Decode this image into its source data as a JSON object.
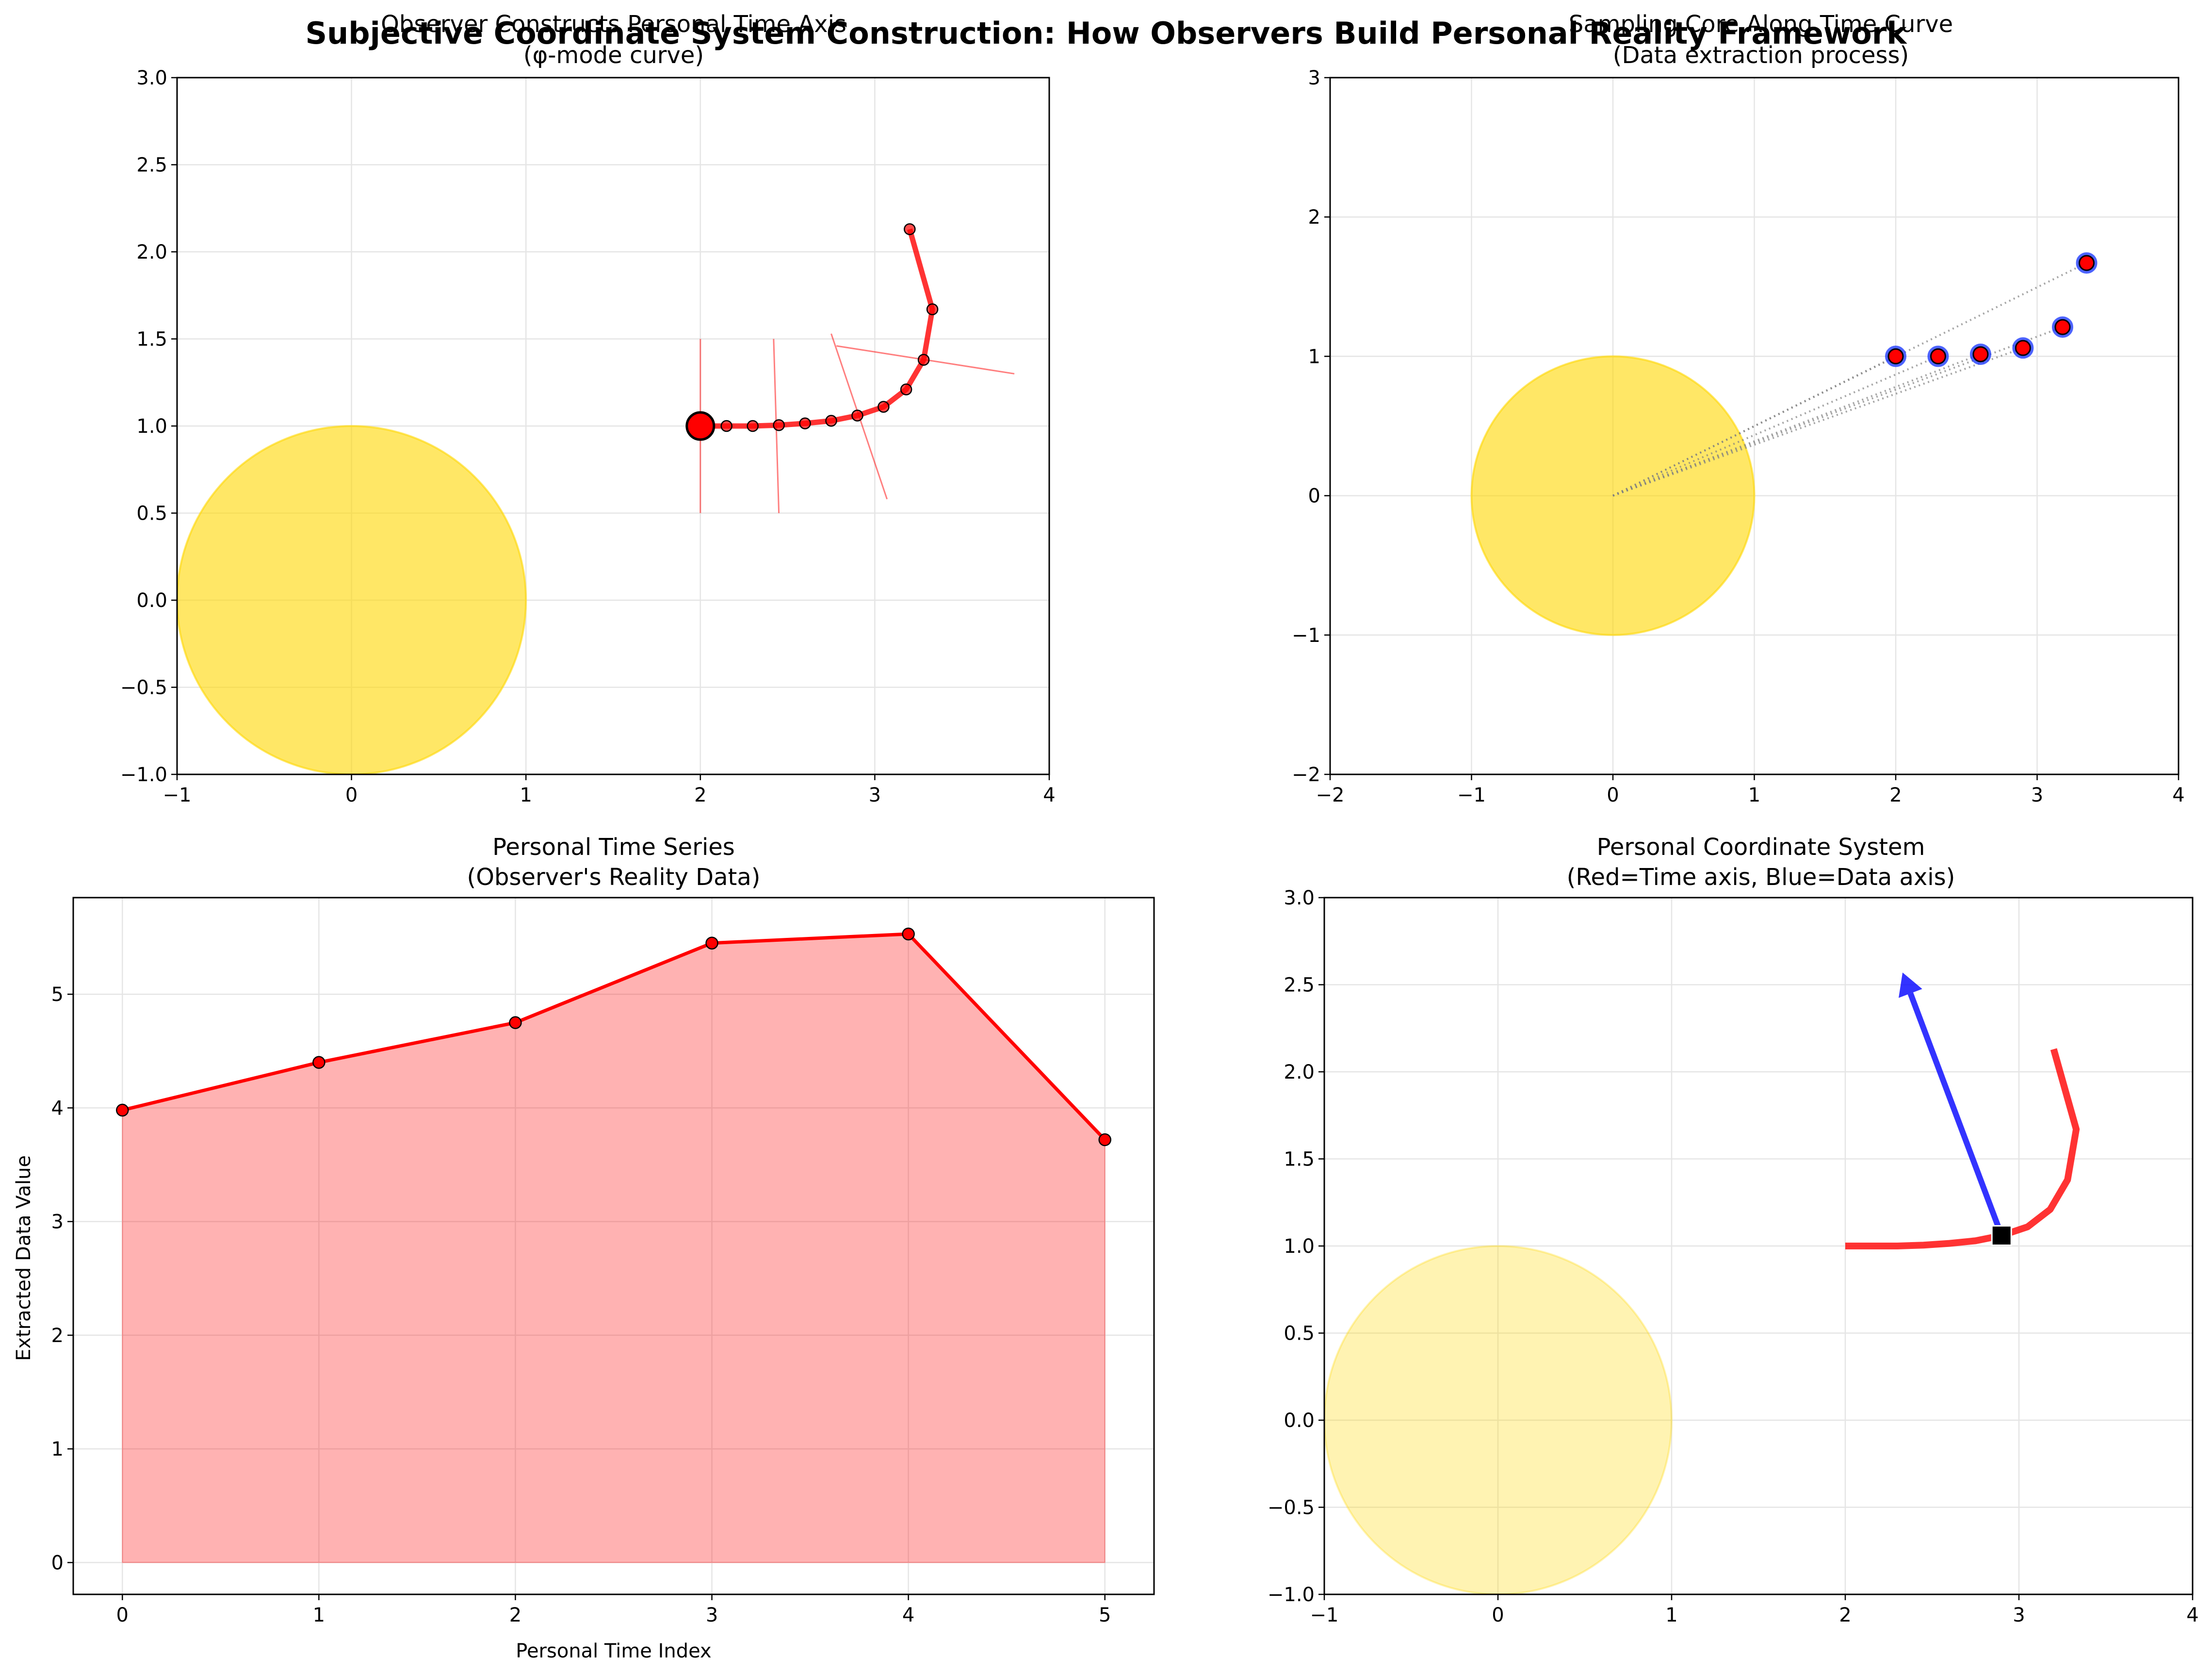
{
  "suptitle": "Subjective Coordinate System Construction: How Observers Build Personal Reality Framework",
  "colors": {
    "sun": "#FFD700",
    "time_curve": "#FF0000",
    "data_axis": "#0000FF",
    "grid": "#E5E5E5",
    "sample_edge": "#1f3cff",
    "fill": "#FF0000"
  },
  "chart_data": [
    {
      "id": "time-axis",
      "type": "line",
      "title_line1": "Observer Constructs Personal Time Axis",
      "title_line2": "(φ-mode curve)",
      "xlim": [
        -1,
        4
      ],
      "ylim": [
        -1,
        3
      ],
      "xticks": [
        -1,
        0,
        1,
        2,
        3,
        4
      ],
      "yticks": [
        -1.0,
        -0.5,
        0.0,
        0.5,
        1.0,
        1.5,
        2.0,
        2.5,
        3.0
      ],
      "grid": true,
      "sun": {
        "center": [
          0,
          0
        ],
        "radius": 1,
        "alpha": 0.6
      },
      "curve_x": [
        2.0,
        2.15,
        2.3,
        2.45,
        2.6,
        2.75,
        2.9,
        3.05,
        3.18,
        3.28,
        3.33,
        3.2
      ],
      "curve_y": [
        1.0,
        1.0,
        1.0,
        1.005,
        1.015,
        1.03,
        1.06,
        1.11,
        1.21,
        1.38,
        1.67,
        2.13
      ],
      "start_point": [
        2.0,
        1.0
      ],
      "tangent_lines": [
        {
          "x": [
            2.0,
            2.0
          ],
          "y": [
            0.5,
            1.5
          ]
        },
        {
          "x": [
            2.45,
            2.42
          ],
          "y": [
            0.5,
            1.5
          ]
        },
        {
          "x": [
            2.75,
            3.07
          ],
          "y": [
            1.53,
            0.58
          ]
        },
        {
          "x": [
            2.78,
            3.8
          ],
          "y": [
            1.46,
            1.3
          ]
        }
      ]
    },
    {
      "id": "sampling-core",
      "type": "scatter",
      "title_line1": "Sampling Core Along Time Curve",
      "title_line2": "(Data extraction process)",
      "xlim": [
        -2,
        4
      ],
      "ylim": [
        -2,
        3
      ],
      "xticks": [
        -2,
        -1,
        0,
        1,
        2,
        3,
        4
      ],
      "yticks": [
        -2,
        -1,
        0,
        1,
        2,
        3
      ],
      "grid": true,
      "sun": {
        "center": [
          0,
          0
        ],
        "radius": 1,
        "alpha": 0.6
      },
      "samples_x": [
        2.0,
        2.3,
        2.6,
        2.9,
        3.18,
        3.35
      ],
      "samples_y": [
        1.0,
        1.0,
        1.015,
        1.06,
        1.21,
        1.67
      ],
      "rays_from": [
        0,
        0
      ]
    },
    {
      "id": "time-series",
      "type": "area",
      "title_line1": "Personal Time Series",
      "title_line2": "(Observer's Reality Data)",
      "xlabel": "Personal Time Index",
      "ylabel": "Extracted Data Value",
      "xlim": [
        -0.25,
        5.25
      ],
      "ylim": [
        -0.28,
        5.85
      ],
      "xticks": [
        0,
        1,
        2,
        3,
        4,
        5
      ],
      "yticks": [
        0,
        1,
        2,
        3,
        4,
        5
      ],
      "grid": true,
      "x": [
        0,
        1,
        2,
        3,
        4,
        5
      ],
      "values": [
        3.98,
        4.4,
        4.75,
        5.45,
        5.53,
        3.72
      ]
    },
    {
      "id": "coordinate-system",
      "type": "line",
      "title_line1": "Personal Coordinate System",
      "title_line2": "(Red=Time axis, Blue=Data axis)",
      "xlim": [
        -1,
        4
      ],
      "ylim": [
        -1,
        3
      ],
      "xticks": [
        -1,
        0,
        1,
        2,
        3,
        4
      ],
      "yticks": [
        -1.0,
        -0.5,
        0.0,
        0.5,
        1.0,
        1.5,
        2.0,
        2.5,
        3.0
      ],
      "grid": true,
      "sun": {
        "center": [
          0,
          0
        ],
        "radius": 1,
        "alpha": 0.3
      },
      "curve_x": [
        2.0,
        2.15,
        2.3,
        2.45,
        2.6,
        2.75,
        2.9,
        3.05,
        3.18,
        3.28,
        3.33,
        3.2
      ],
      "curve_y": [
        1.0,
        1.0,
        1.0,
        1.005,
        1.015,
        1.03,
        1.06,
        1.11,
        1.21,
        1.38,
        1.67,
        2.13
      ],
      "origin_marker": [
        2.9,
        1.06
      ],
      "data_axis_arrow": {
        "from": [
          2.9,
          1.06
        ],
        "to": [
          2.33,
          2.57
        ]
      }
    }
  ]
}
